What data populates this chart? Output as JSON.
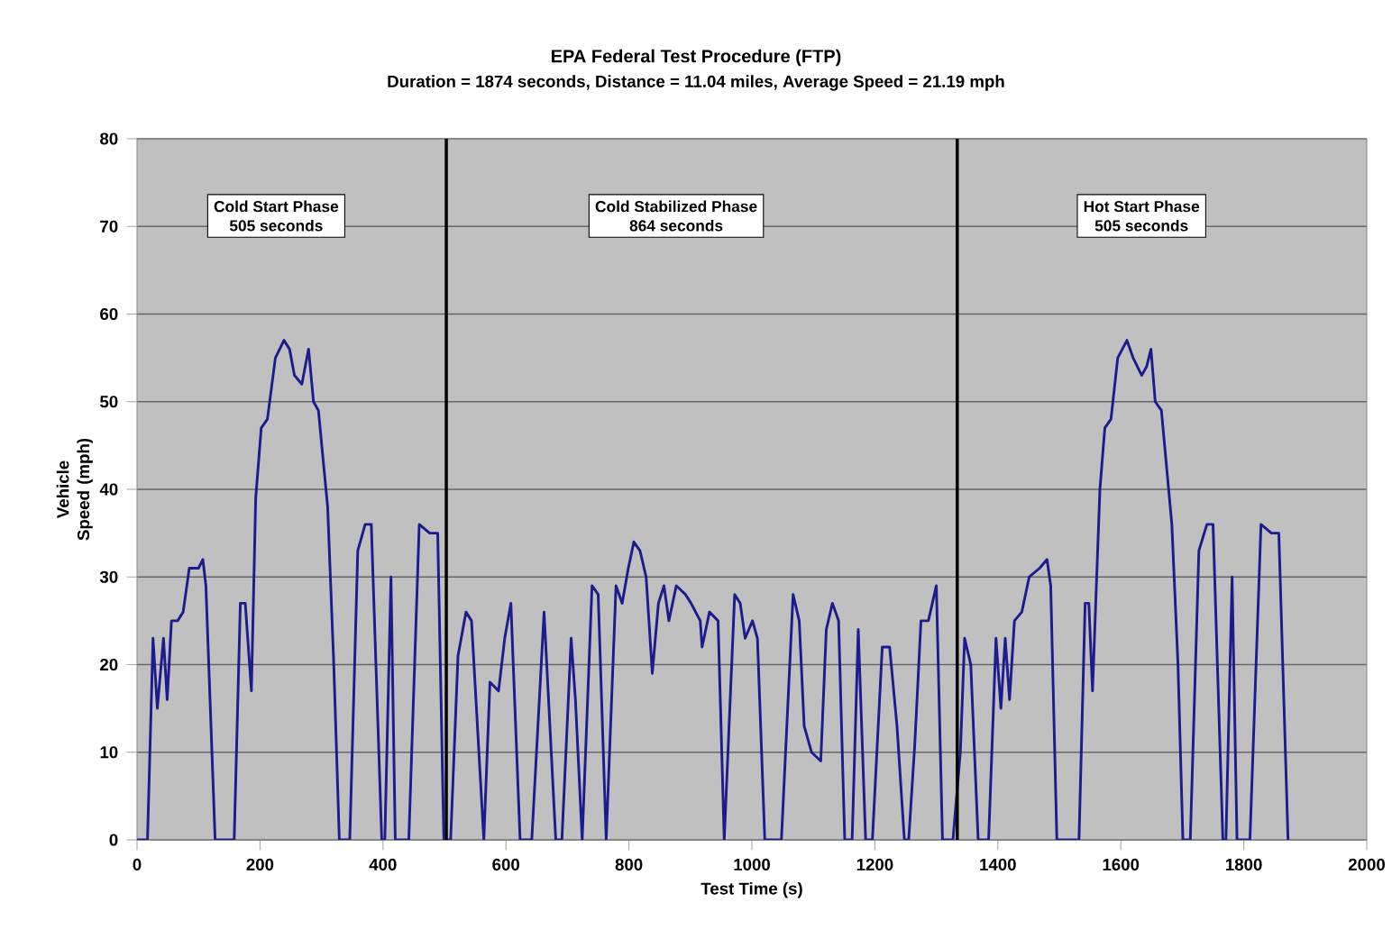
{
  "chart_data": {
    "type": "line",
    "title": "EPA Federal Test Procedure (FTP)",
    "subtitle": "Duration = 1874 seconds, Distance = 11.04 miles, Average Speed = 21.19 mph",
    "xlabel": "Test Time (s)",
    "ylabel": "Vehicle Speed (mph)",
    "xlim": [
      0,
      2000
    ],
    "ylim": [
      0,
      80
    ],
    "xticks": [
      0,
      200,
      400,
      600,
      800,
      1000,
      1200,
      1400,
      1600,
      1800,
      2000
    ],
    "yticks": [
      0,
      10,
      20,
      30,
      40,
      50,
      60,
      70,
      80
    ],
    "grid": "y",
    "series": [
      {
        "color": "#1c1c8c",
        "x": [
          0,
          17,
          26,
          33,
          43,
          49,
          56,
          66,
          75,
          85,
          100,
          107,
          112,
          127,
          158,
          168,
          176,
          186,
          193,
          202,
          212,
          225,
          239,
          248,
          256,
          268,
          279,
          287,
          295,
          310,
          320,
          329,
          346,
          359,
          371,
          381,
          398,
          403,
          413,
          420,
          442,
          459,
          476,
          489,
          499,
          510,
          522,
          535,
          544,
          564,
          574,
          588,
          598,
          608,
          623,
          642,
          662,
          681,
          691,
          706,
          713,
          724,
          740,
          750,
          763,
          779,
          789,
          799,
          808,
          818,
          828,
          838,
          848,
          857,
          865,
          877,
          892,
          901,
          916,
          919,
          931,
          945,
          955,
          972,
          981,
          989,
          1001,
          1009,
          1021,
          1048,
          1067,
          1077,
          1085,
          1097,
          1112,
          1121,
          1131,
          1141,
          1151,
          1163,
          1173,
          1185,
          1196,
          1212,
          1224,
          1236,
          1248,
          1255,
          1265,
          1275,
          1287,
          1300,
          1310,
          1327,
          1339,
          1346,
          1356,
          1368,
          1385,
          1397,
          1405,
          1412,
          1419,
          1427,
          1439,
          1451,
          1468,
          1480,
          1486,
          1496,
          1532,
          1542,
          1548,
          1554,
          1566,
          1574,
          1584,
          1595,
          1610,
          1620,
          1634,
          1642,
          1649,
          1656,
          1666,
          1683,
          1693,
          1701,
          1713,
          1727,
          1740,
          1750,
          1766,
          1771,
          1781,
          1789,
          1810,
          1828,
          1845,
          1857,
          1872
        ],
        "values": [
          0,
          0,
          23,
          15,
          23,
          16,
          25,
          25,
          26,
          31,
          31,
          32,
          29,
          0,
          0,
          27,
          27,
          17,
          39,
          47,
          48,
          55,
          57,
          56,
          53,
          52,
          56,
          50,
          49,
          38,
          20,
          0,
          0,
          33,
          36,
          36,
          0,
          0,
          30,
          0,
          0,
          36,
          35,
          35,
          0,
          0,
          21,
          26,
          25,
          0,
          18,
          17,
          23,
          27,
          0,
          0,
          26,
          0,
          0,
          23,
          16,
          0,
          29,
          28,
          0,
          29,
          27,
          31,
          34,
          33,
          30,
          19,
          27,
          29,
          25,
          29,
          28,
          27,
          25,
          22,
          26,
          25,
          0,
          28,
          27,
          23,
          25,
          23,
          0,
          0,
          28,
          25,
          13,
          10,
          9,
          24,
          27,
          25,
          0,
          0,
          24,
          0,
          0,
          22,
          22,
          13,
          0,
          0,
          11,
          25,
          25,
          29,
          0,
          0,
          10,
          23,
          20,
          0,
          0,
          23,
          15,
          23,
          16,
          25,
          26,
          30,
          31,
          32,
          29,
          0,
          0,
          27,
          27,
          17,
          40,
          47,
          48,
          55,
          57,
          55,
          53,
          54,
          56,
          50,
          49,
          36,
          20,
          0,
          0,
          33,
          36,
          36,
          0,
          0,
          30,
          0,
          0,
          36,
          35,
          35,
          0
        ]
      }
    ],
    "ref_lines": [
      {
        "axis": "x",
        "value": 503,
        "color": "#000000"
      },
      {
        "axis": "x",
        "value": 1334,
        "color": "#000000"
      }
    ],
    "annotations": [
      "Cold Start Phase",
      "505 seconds",
      "Cold Stabilized Phase",
      "864 seconds",
      "Hot Start Phase",
      "505 seconds"
    ]
  }
}
